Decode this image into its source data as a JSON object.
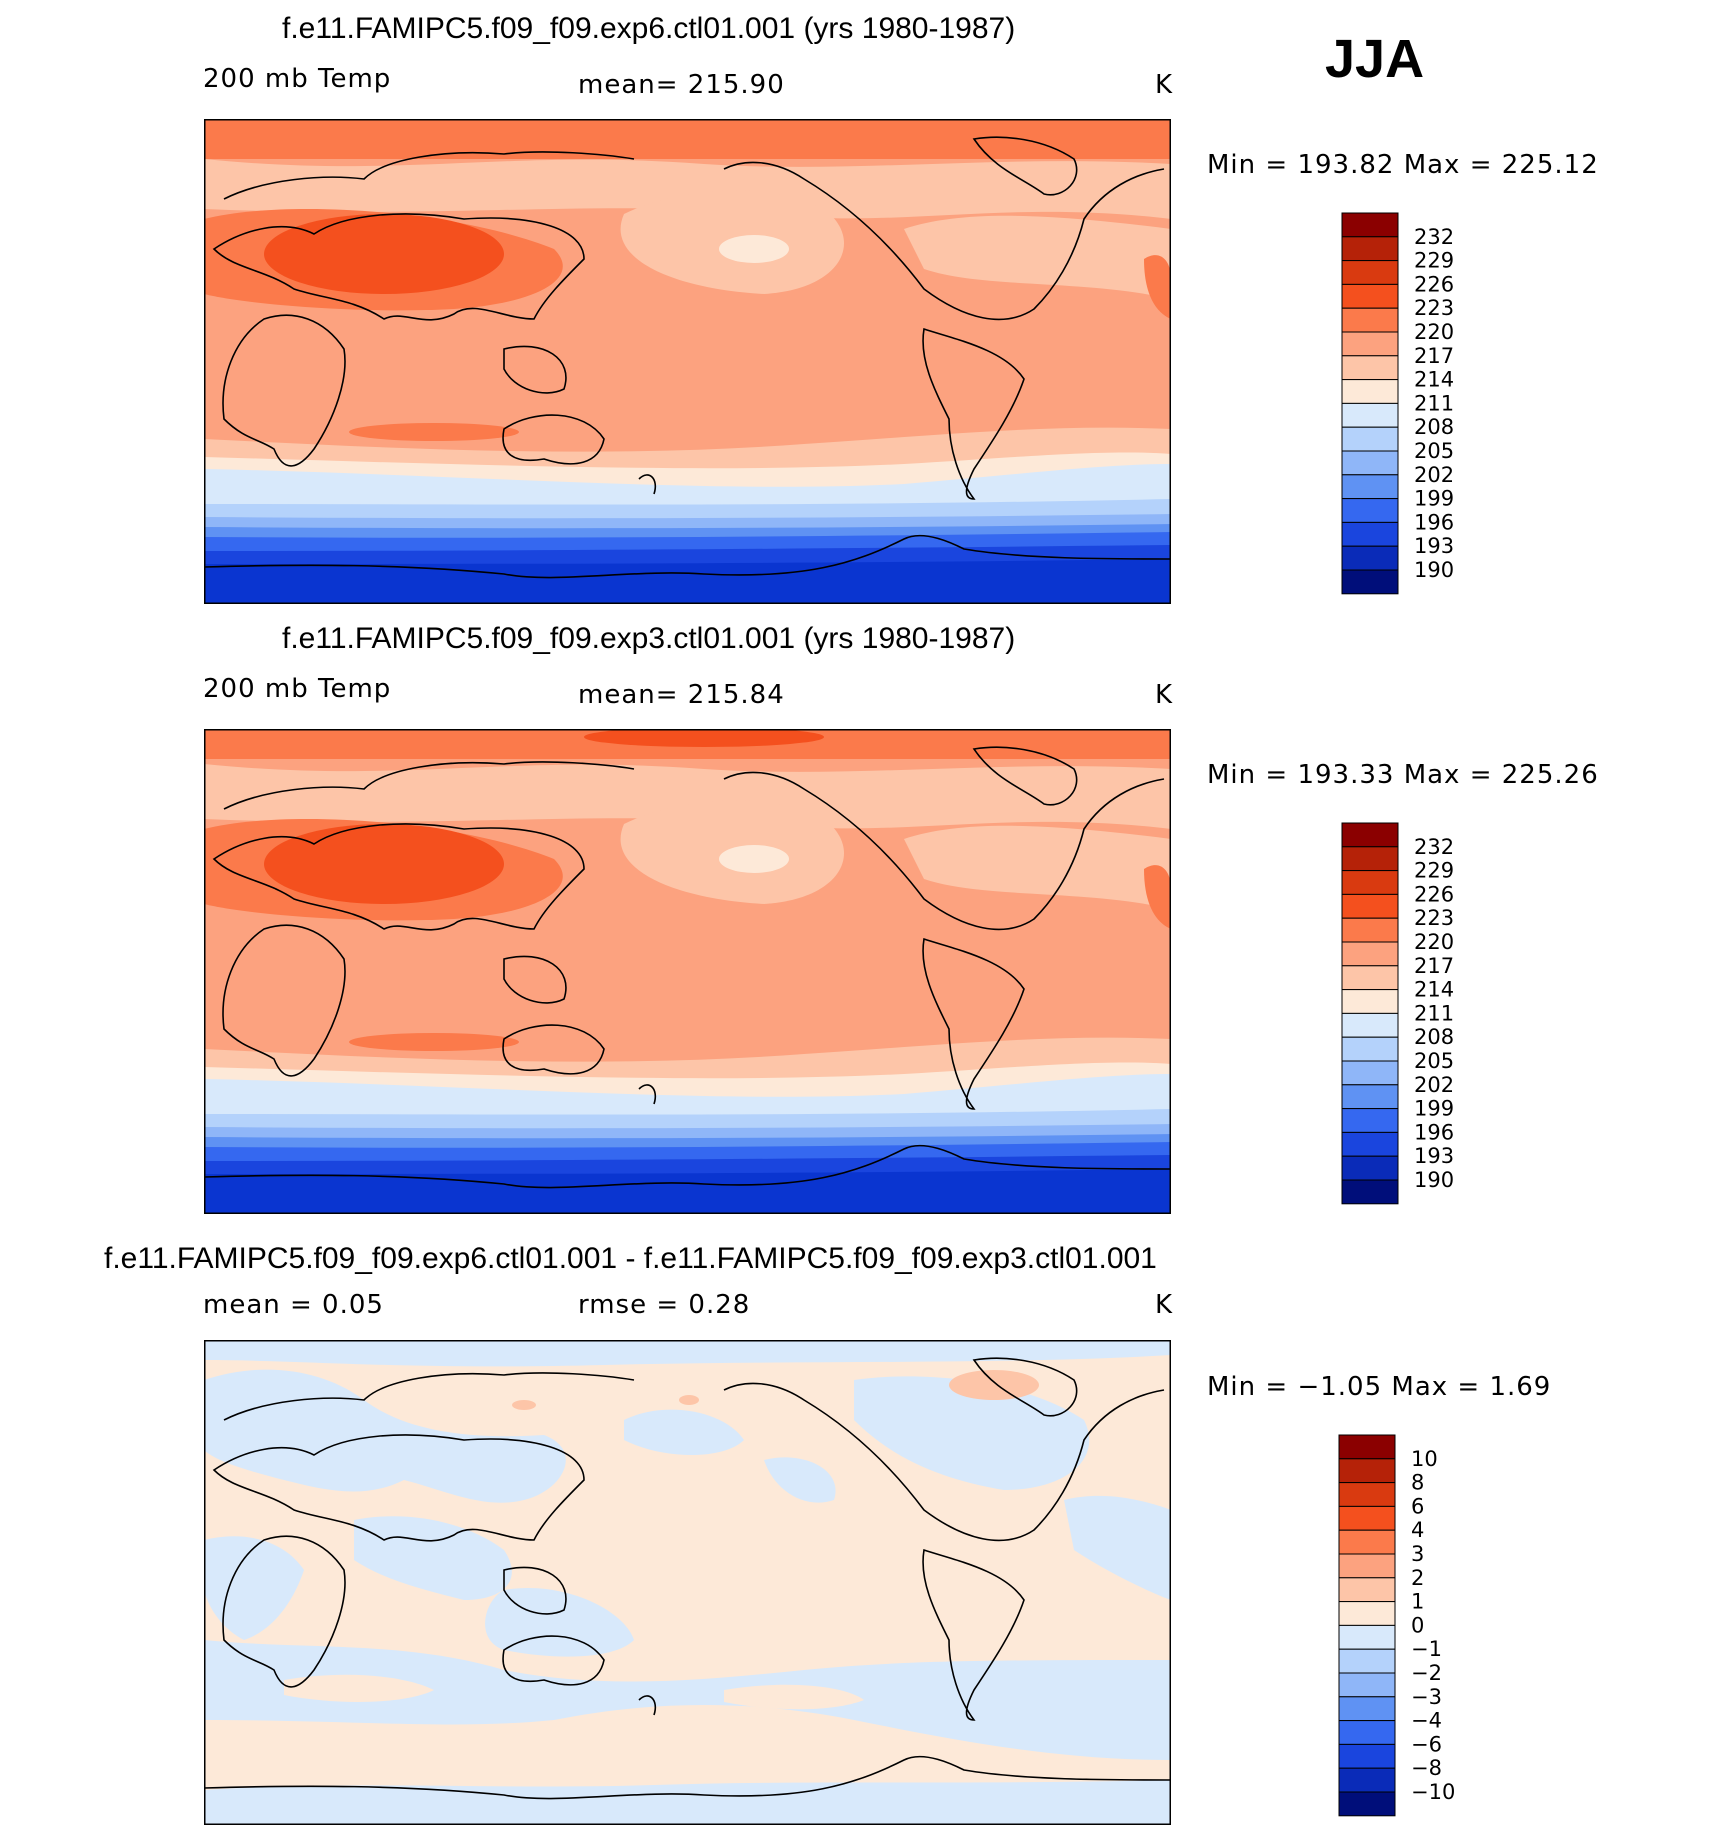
{
  "season": "JJA",
  "panels": [
    {
      "id": "top",
      "title": "f.e11.FAMIPC5.f09_f09.exp6.ctl01.001 (yrs 1980-1987)",
      "variable": "200 mb Temp",
      "stat_text": "mean=  215.90",
      "units": "K",
      "minmax_text": "Min  =  193.82  Max  =  225.12"
    },
    {
      "id": "middle",
      "title": "f.e11.FAMIPC5.f09_f09.exp3.ctl01.001 (yrs 1980-1987)",
      "variable": "200 mb Temp",
      "stat_text": "mean=  215.84",
      "units": "K",
      "minmax_text": "Min  =  193.33  Max  =  225.26"
    },
    {
      "id": "bottom",
      "title": "f.e11.FAMIPC5.f09_f09.exp6.ctl01.001 - f.e11.FAMIPC5.f09_f09.exp3.ctl01.001",
      "variable": "mean  =     0.05",
      "stat_text": "rmse  =     0.28",
      "units": "K",
      "minmax_text": "Min  =    −1.05  Max  =     1.69"
    }
  ],
  "colorbars": {
    "temp": {
      "labels": [
        "232",
        "229",
        "226",
        "223",
        "220",
        "217",
        "214",
        "211",
        "208",
        "205",
        "202",
        "199",
        "196",
        "193",
        "190"
      ],
      "colors": [
        "#8b0000",
        "#b52208",
        "#d93a10",
        "#f4501e",
        "#fb7a4b",
        "#fca27f",
        "#fdc5a8",
        "#fde9d8",
        "#d8e9fb",
        "#b4d2fb",
        "#8fb6f8",
        "#5f92f3",
        "#3568f0",
        "#1a45de",
        "#0a2bb8",
        "#000e7a"
      ]
    },
    "diff": {
      "labels": [
        "10",
        "8",
        "6",
        "4",
        "3",
        "2",
        "1",
        "0",
        "−1",
        "−2",
        "−3",
        "−4",
        "−6",
        "−8",
        "−10"
      ],
      "colors": [
        "#8b0000",
        "#b52208",
        "#d93a10",
        "#f4501e",
        "#fb7a4b",
        "#fca27f",
        "#fdc5a8",
        "#fde9d8",
        "#d8e9fb",
        "#b4d2fb",
        "#8fb6f8",
        "#5f92f3",
        "#3568f0",
        "#1a45de",
        "#0a2bb8",
        "#000e7a"
      ]
    }
  },
  "chart_data": [
    {
      "type": "heatmap",
      "title": "f.e11.FAMIPC5.f09_f09.exp6.ctl01.001 (yrs 1980-1987)",
      "variable": "200 mb Temp",
      "units": "K",
      "mean": 215.9,
      "min": 193.82,
      "max": 225.12,
      "contour_levels": [
        190,
        193,
        196,
        199,
        202,
        205,
        208,
        211,
        214,
        217,
        220,
        223,
        226,
        229,
        232
      ]
    },
    {
      "type": "heatmap",
      "title": "f.e11.FAMIPC5.f09_f09.exp3.ctl01.001 (yrs 1980-1987)",
      "variable": "200 mb Temp",
      "units": "K",
      "mean": 215.84,
      "min": 193.33,
      "max": 225.26,
      "contour_levels": [
        190,
        193,
        196,
        199,
        202,
        205,
        208,
        211,
        214,
        217,
        220,
        223,
        226,
        229,
        232
      ]
    },
    {
      "type": "heatmap",
      "title": "f.e11.FAMIPC5.f09_f09.exp6.ctl01.001 - f.e11.FAMIPC5.f09_f09.exp3.ctl01.001",
      "units": "K",
      "mean": 0.05,
      "rmse": 0.28,
      "min": -1.05,
      "max": 1.69,
      "contour_levels": [
        -10,
        -8,
        -6,
        -4,
        -3,
        -2,
        -1,
        0,
        1,
        2,
        3,
        4,
        6,
        8,
        10
      ]
    }
  ]
}
